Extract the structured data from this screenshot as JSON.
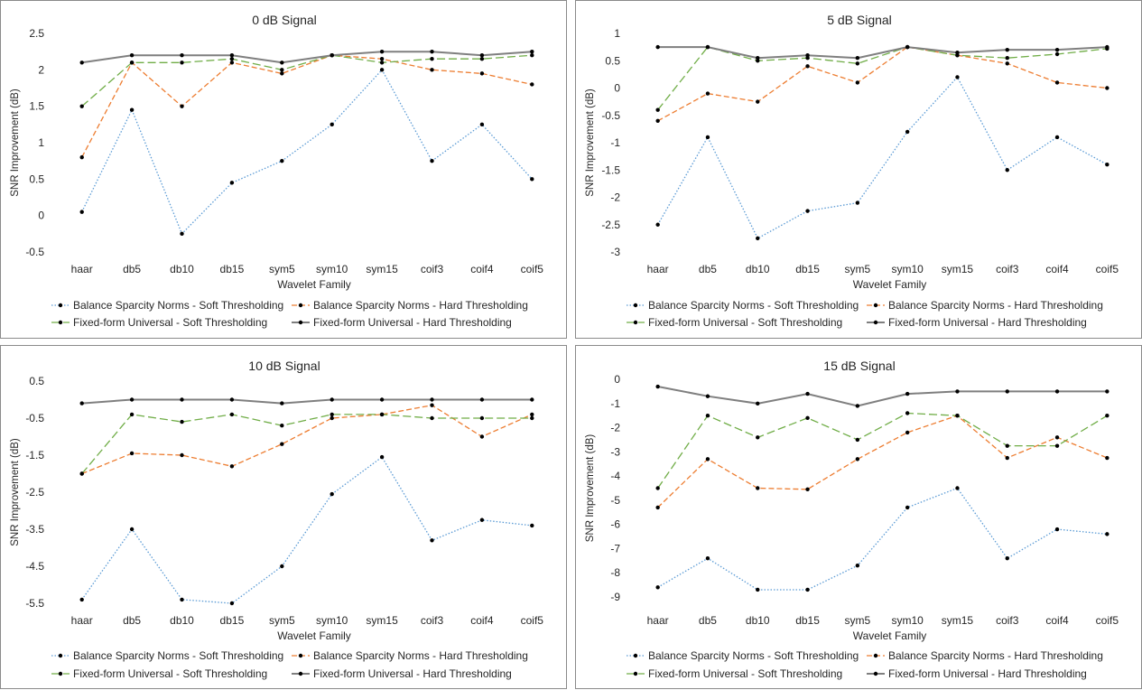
{
  "categories": [
    "haar",
    "db5",
    "db10",
    "db15",
    "sym5",
    "sym10",
    "sym15",
    "coif3",
    "coif4",
    "coif5"
  ],
  "series_names": [
    "Balance Sparcity Norms - Soft Thresholding",
    "Balance Sparcity Norms - Hard Thresholding",
    "Fixed-form Universal - Soft Thresholding",
    "Fixed-form Universal - Hard Thresholding"
  ],
  "series_colors": [
    "#5b9bd5",
    "#ed7d31",
    "#70ad47",
    "#7f7f7f"
  ],
  "chart_data": [
    {
      "type": "line",
      "title": "0 dB Signal",
      "xlabel": "Wavelet Family",
      "ylabel": "SNR Improvement (dB)",
      "ylim": [
        -0.5,
        2.5
      ],
      "yticks": [
        "2.5",
        "2",
        "1.5",
        "1",
        "0.5",
        "0",
        "-0.5"
      ],
      "categories": [
        "haar",
        "db5",
        "db10",
        "db15",
        "sym5",
        "sym10",
        "sym15",
        "coif3",
        "coif4",
        "coif5"
      ],
      "series": [
        {
          "name": "Balance Sparcity Norms - Soft Thresholding",
          "values": [
            0.05,
            1.45,
            -0.25,
            0.45,
            0.75,
            1.25,
            2.0,
            0.75,
            1.25,
            0.5
          ]
        },
        {
          "name": "Balance Sparcity Norms - Hard Thresholding",
          "values": [
            0.8,
            2.1,
            1.5,
            2.1,
            1.95,
            2.2,
            2.15,
            2.0,
            1.95,
            1.8
          ]
        },
        {
          "name": "Fixed-form Universal - Soft Thresholding",
          "values": [
            1.5,
            2.1,
            2.1,
            2.15,
            2.0,
            2.2,
            2.1,
            2.15,
            2.15,
            2.2
          ]
        },
        {
          "name": "Fixed-form Universal - Hard Thresholding",
          "values": [
            2.1,
            2.2,
            2.2,
            2.2,
            2.1,
            2.2,
            2.25,
            2.25,
            2.2,
            2.25
          ]
        }
      ]
    },
    {
      "type": "line",
      "title": "5 dB Signal",
      "xlabel": "Wavelet Family",
      "ylabel": "SNR Improvement (dB)",
      "ylim": [
        -3,
        1
      ],
      "yticks": [
        "1",
        "0.5",
        "0",
        "-0.5",
        "-1",
        "-1.5",
        "-2",
        "-2.5",
        "-3"
      ],
      "categories": [
        "haar",
        "db5",
        "db10",
        "db15",
        "sym5",
        "sym10",
        "sym15",
        "coif3",
        "coif4",
        "coif5"
      ],
      "series": [
        {
          "name": "Balance Sparcity Norms - Soft Thresholding",
          "values": [
            -2.5,
            -0.9,
            -2.75,
            -2.25,
            -2.1,
            -0.8,
            0.2,
            -1.5,
            -0.9,
            -1.4
          ]
        },
        {
          "name": "Balance Sparcity Norms - Hard Thresholding",
          "values": [
            -0.6,
            -0.1,
            -0.25,
            0.4,
            0.1,
            0.75,
            0.6,
            0.45,
            0.1,
            0.0
          ]
        },
        {
          "name": "Fixed-form Universal - Soft Thresholding",
          "values": [
            -0.4,
            0.75,
            0.5,
            0.55,
            0.45,
            0.75,
            0.6,
            0.55,
            0.62,
            0.72
          ]
        },
        {
          "name": "Fixed-form Universal - Hard Thresholding",
          "values": [
            0.75,
            0.75,
            0.55,
            0.6,
            0.55,
            0.75,
            0.65,
            0.7,
            0.7,
            0.75
          ]
        }
      ]
    },
    {
      "type": "line",
      "title": "10 dB Signal",
      "xlabel": "Wavelet Family",
      "ylabel": "SNR Improvement (dB)",
      "ylim": [
        -5.5,
        0.5
      ],
      "yticks": [
        "0.5",
        "-0.5",
        "-1.5",
        "-2.5",
        "-3.5",
        "-4.5",
        "-5.5"
      ],
      "categories": [
        "haar",
        "db5",
        "db10",
        "db15",
        "sym5",
        "sym10",
        "sym15",
        "coif3",
        "coif4",
        "coif5"
      ],
      "series": [
        {
          "name": "Balance Sparcity Norms - Soft Thresholding",
          "values": [
            -5.4,
            -3.5,
            -5.4,
            -5.5,
            -4.5,
            -2.55,
            -1.55,
            -3.8,
            -3.25,
            -3.4
          ]
        },
        {
          "name": "Balance Sparcity Norms - Hard Thresholding",
          "values": [
            -2.0,
            -1.45,
            -1.5,
            -1.8,
            -1.2,
            -0.5,
            -0.4,
            -0.15,
            -1.0,
            -0.4
          ]
        },
        {
          "name": "Fixed-form Universal - Soft Thresholding",
          "values": [
            -2.0,
            -0.4,
            -0.6,
            -0.4,
            -0.7,
            -0.4,
            -0.4,
            -0.5,
            -0.5,
            -0.5
          ]
        },
        {
          "name": "Fixed-form Universal - Hard Thresholding",
          "values": [
            -0.1,
            0.0,
            0.0,
            0.0,
            -0.1,
            0.0,
            0.0,
            0.0,
            0.0,
            0.0
          ]
        }
      ]
    },
    {
      "type": "line",
      "title": "15 dB Signal",
      "xlabel": "Wavelet Family",
      "ylabel": "SNR Improvement (dB)",
      "ylim": [
        -9,
        0
      ],
      "yticks": [
        "0",
        "-1",
        "-2",
        "-3",
        "-4",
        "-5",
        "-6",
        "-7",
        "-8",
        "-9"
      ],
      "categories": [
        "haar",
        "db5",
        "db10",
        "db15",
        "sym5",
        "sym10",
        "sym15",
        "coif3",
        "coif4",
        "coif5"
      ],
      "series": [
        {
          "name": "Balance Sparcity Norms - Soft Thresholding",
          "values": [
            -8.6,
            -7.4,
            -8.7,
            -8.7,
            -7.7,
            -5.3,
            -4.5,
            -7.4,
            -6.2,
            -6.4
          ]
        },
        {
          "name": "Balance Sparcity Norms - Hard Thresholding",
          "values": [
            -5.3,
            -3.3,
            -4.5,
            -4.55,
            -3.3,
            -2.2,
            -1.5,
            -3.25,
            -2.4,
            -3.25
          ]
        },
        {
          "name": "Fixed-form Universal - Soft Thresholding",
          "values": [
            -4.5,
            -1.5,
            -2.4,
            -1.6,
            -2.5,
            -1.4,
            -1.5,
            -2.75,
            -2.75,
            -1.5
          ]
        },
        {
          "name": "Fixed-form Universal - Hard Thresholding",
          "values": [
            -0.3,
            -0.7,
            -1.0,
            -0.6,
            -1.1,
            -0.6,
            -0.5,
            -0.5,
            -0.5,
            -0.5
          ]
        }
      ]
    }
  ]
}
